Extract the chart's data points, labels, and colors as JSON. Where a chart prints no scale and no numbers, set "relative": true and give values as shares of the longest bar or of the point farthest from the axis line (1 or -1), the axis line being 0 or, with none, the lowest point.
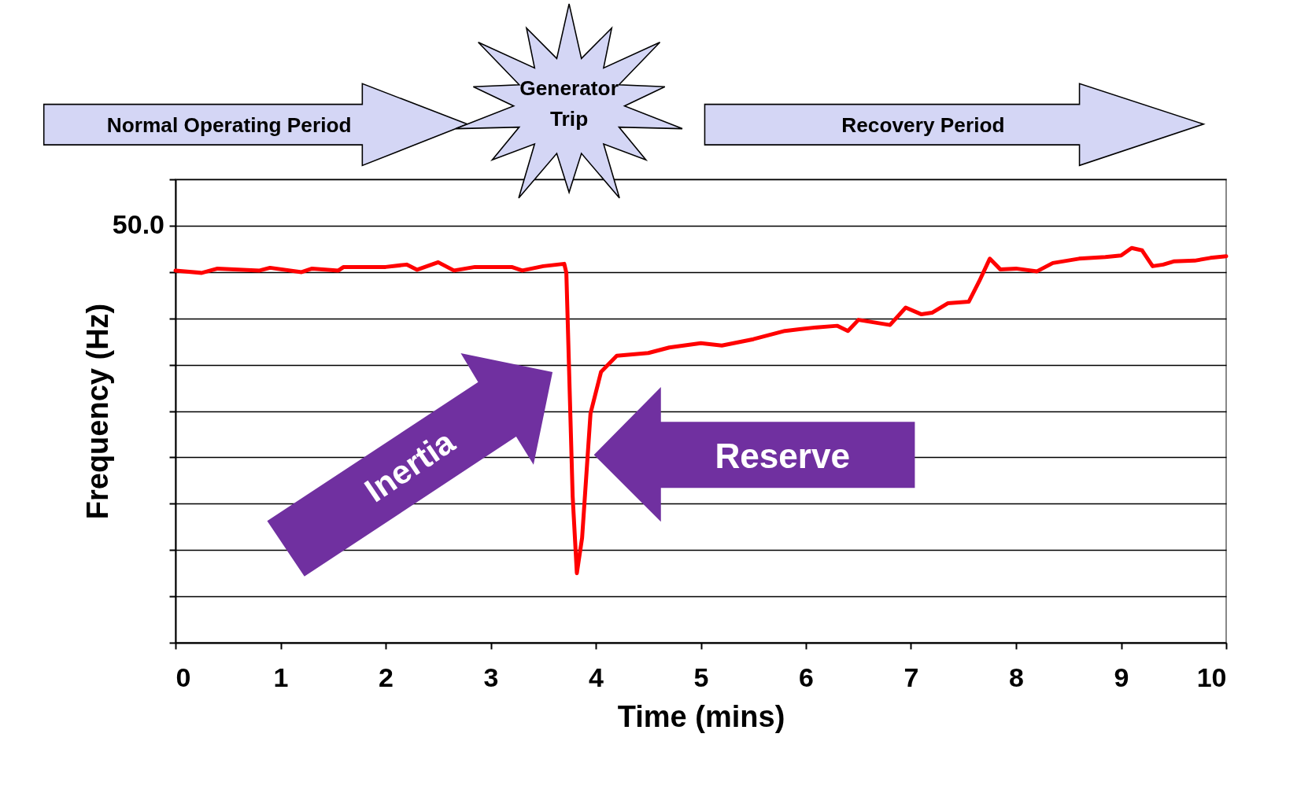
{
  "chart_data": {
    "type": "line",
    "xlabel": "Time (mins)",
    "ylabel": "Frequency (Hz)",
    "relative": true,
    "x": [
      0,
      0.25,
      0.4,
      0.8,
      0.9,
      1.2,
      1.3,
      1.55,
      1.6,
      2.0,
      2.2,
      2.3,
      2.5,
      2.65,
      2.85,
      3.2,
      3.3,
      3.5,
      3.7,
      3.72,
      3.78,
      3.82,
      3.87,
      3.95,
      4.05,
      4.2,
      4.5,
      4.7,
      5.0,
      5.2,
      5.5,
      5.8,
      6.1,
      6.3,
      6.4,
      6.5,
      6.8,
      6.95,
      7.1,
      7.2,
      7.35,
      7.55,
      7.65,
      7.75,
      7.85,
      8.0,
      8.2,
      8.35,
      8.6,
      8.85,
      9.0,
      9.1,
      9.2,
      9.3,
      9.4,
      9.5,
      9.7,
      9.85,
      10
    ],
    "series": [
      {
        "color": "#ff0000",
        "values": [
          0.943,
          0.937,
          0.948,
          0.943,
          0.95,
          0.939,
          0.948,
          0.943,
          0.952,
          0.952,
          0.958,
          0.945,
          0.964,
          0.943,
          0.952,
          0.952,
          0.943,
          0.954,
          0.96,
          0.937,
          0.371,
          0.176,
          0.266,
          0.581,
          0.686,
          0.727,
          0.734,
          0.748,
          0.759,
          0.753,
          0.769,
          0.79,
          0.799,
          0.803,
          0.79,
          0.818,
          0.805,
          0.849,
          0.832,
          0.836,
          0.86,
          0.864,
          0.916,
          0.973,
          0.946,
          0.948,
          0.941,
          0.962,
          0.973,
          0.977,
          0.981,
          1.0,
          0.994,
          0.954,
          0.958,
          0.966,
          0.968,
          0.975,
          0.979
        ]
      }
    ],
    "xlim": [
      0,
      10
    ],
    "xticks": [
      0,
      1,
      2,
      3,
      4,
      5,
      6,
      7,
      8,
      9,
      10
    ],
    "grid": "y",
    "line_style": "solid",
    "annotations": [
      "Normal Operating  Period",
      "Generator Trip",
      "Recovery Period",
      "Inertia",
      "Reserve",
      "50.0"
    ]
  }
}
